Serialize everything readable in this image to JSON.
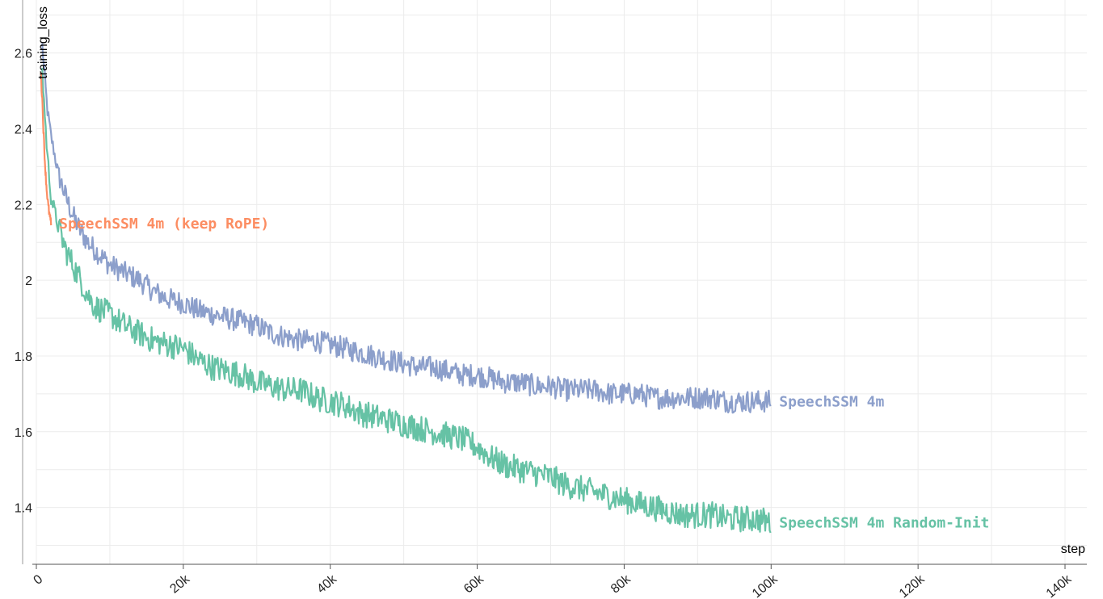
{
  "chart_data": {
    "type": "line",
    "xlabel": "step",
    "ylabel": "training_loss",
    "xlim": [
      0,
      140000
    ],
    "ylim": [
      1.25,
      2.74
    ],
    "x_ticks": [
      0,
      20000,
      40000,
      60000,
      80000,
      100000,
      120000,
      140000
    ],
    "x_tick_labels": [
      "0",
      "20k",
      "40k",
      "60k",
      "80k",
      "100k",
      "120k",
      "140k"
    ],
    "y_ticks": [
      1.4,
      1.6,
      1.8,
      2.0,
      2.2,
      2.4,
      2.6
    ],
    "y_tick_labels": [
      "1.4",
      "1.6",
      "1.8",
      "2",
      "2.2",
      "2.4",
      "2.6"
    ],
    "grid": true,
    "series": [
      {
        "name": "SpeechSSM 4m",
        "color": "#8c9fcb",
        "x": [
          800,
          1500,
          2000,
          3000,
          4000,
          5000,
          6000,
          7000,
          8000,
          10000,
          12000,
          14000,
          16000,
          18000,
          20000,
          22000,
          24000,
          26000,
          28000,
          30000,
          32000,
          34000,
          36000,
          38000,
          40000,
          42000,
          44000,
          46000,
          48000,
          50000,
          52000,
          54000,
          56000,
          58000,
          60000,
          62000,
          64000,
          66000,
          68000,
          70000,
          72000,
          74000,
          76000,
          78000,
          80000,
          82000,
          84000,
          86000,
          88000,
          90000,
          92000,
          94000,
          96000,
          98000,
          100000
        ],
        "y": [
          2.62,
          2.45,
          2.38,
          2.28,
          2.22,
          2.17,
          2.13,
          2.1,
          2.08,
          2.04,
          2.02,
          2.0,
          1.97,
          1.95,
          1.94,
          1.92,
          1.91,
          1.9,
          1.89,
          1.88,
          1.86,
          1.85,
          1.84,
          1.84,
          1.83,
          1.82,
          1.81,
          1.8,
          1.79,
          1.78,
          1.77,
          1.77,
          1.76,
          1.75,
          1.75,
          1.74,
          1.73,
          1.73,
          1.72,
          1.72,
          1.71,
          1.71,
          1.71,
          1.7,
          1.7,
          1.7,
          1.69,
          1.69,
          1.69,
          1.69,
          1.69,
          1.68,
          1.68,
          1.68,
          1.68
        ]
      },
      {
        "name": "SpeechSSM 4m Random-Init",
        "color": "#66c2a5",
        "x": [
          800,
          1500,
          2000,
          3000,
          4000,
          5000,
          6000,
          7000,
          8000,
          10000,
          12000,
          14000,
          16000,
          18000,
          20000,
          22000,
          24000,
          26000,
          28000,
          30000,
          32000,
          34000,
          36000,
          38000,
          40000,
          42000,
          44000,
          46000,
          48000,
          50000,
          52000,
          54000,
          56000,
          58000,
          60000,
          62000,
          64000,
          66000,
          68000,
          70000,
          72000,
          74000,
          76000,
          78000,
          80000,
          82000,
          84000,
          86000,
          88000,
          90000,
          92000,
          94000,
          96000,
          98000,
          100000
        ],
        "y": [
          2.55,
          2.33,
          2.22,
          2.14,
          2.08,
          2.04,
          2.0,
          1.96,
          1.93,
          1.91,
          1.88,
          1.86,
          1.84,
          1.83,
          1.82,
          1.79,
          1.77,
          1.76,
          1.75,
          1.73,
          1.72,
          1.71,
          1.71,
          1.69,
          1.68,
          1.67,
          1.65,
          1.64,
          1.63,
          1.62,
          1.61,
          1.6,
          1.59,
          1.58,
          1.56,
          1.53,
          1.51,
          1.5,
          1.49,
          1.48,
          1.46,
          1.45,
          1.44,
          1.43,
          1.42,
          1.41,
          1.4,
          1.39,
          1.38,
          1.38,
          1.38,
          1.37,
          1.37,
          1.37,
          1.36
        ]
      },
      {
        "name": "SpeechSSM 4m (keep RoPE)",
        "color": "#fc8d62",
        "x": [
          600,
          800,
          1000,
          1200,
          1400,
          1600,
          1800,
          2000
        ],
        "y": [
          2.55,
          2.48,
          2.38,
          2.3,
          2.24,
          2.2,
          2.17,
          2.15
        ]
      }
    ]
  }
}
